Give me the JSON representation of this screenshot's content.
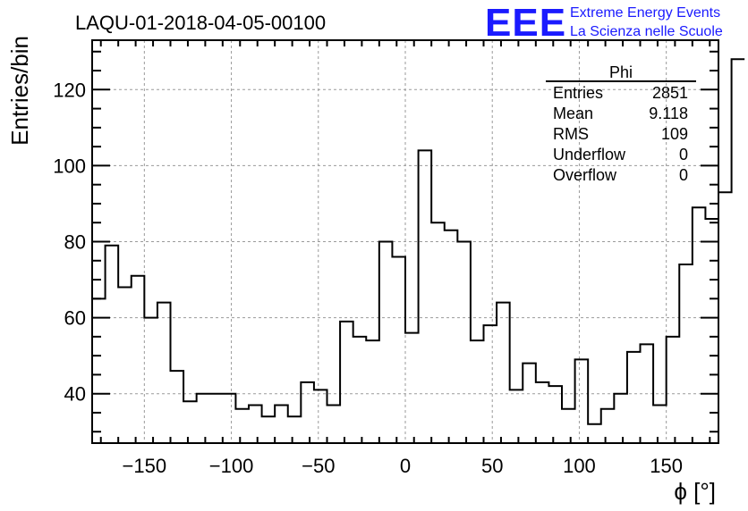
{
  "title": "LAQU-01-2018-04-05-00100",
  "logo": {
    "mark": "EEE",
    "line1": "Extreme Energy Events",
    "line2": "La Scienza nelle Scuole",
    "color": "#1a1aff"
  },
  "stats": {
    "name": "Phi",
    "rows": [
      {
        "label": "Entries",
        "value": "2851"
      },
      {
        "label": "Mean",
        "value": "9.118"
      },
      {
        "label": "RMS",
        "value": "109"
      },
      {
        "label": "Underflow",
        "value": "0"
      },
      {
        "label": "Overflow",
        "value": "0"
      }
    ]
  },
  "chart_data": {
    "type": "histogram",
    "title": "LAQU-01-2018-04-05-00100",
    "xlabel": "ϕ [°]",
    "ylabel": "Entries/bin",
    "xlim": [
      -180,
      180
    ],
    "ylim": [
      27,
      133
    ],
    "bin_width": 7.5,
    "x_ticks": [
      -150,
      -100,
      -50,
      0,
      50,
      100,
      150
    ],
    "x_tick_labels": [
      "−150",
      "−100",
      "−50",
      "0",
      "50",
      "100",
      "150"
    ],
    "y_ticks": [
      40,
      60,
      80,
      100,
      120
    ],
    "y_tick_labels": [
      "40",
      "60",
      "80",
      "100",
      "120"
    ],
    "grid": true,
    "line_color": "#000000",
    "values": [
      65,
      79,
      68,
      71,
      60,
      64,
      46,
      38,
      40,
      40,
      40,
      36,
      37,
      34,
      37,
      34,
      43,
      41,
      37,
      59,
      55,
      54,
      80,
      76,
      56,
      104,
      85,
      83,
      80,
      54,
      58,
      64,
      41,
      48,
      43,
      42,
      36,
      49,
      32,
      36,
      40,
      51,
      53,
      37,
      55,
      74,
      89,
      86,
      93,
      128
    ]
  }
}
